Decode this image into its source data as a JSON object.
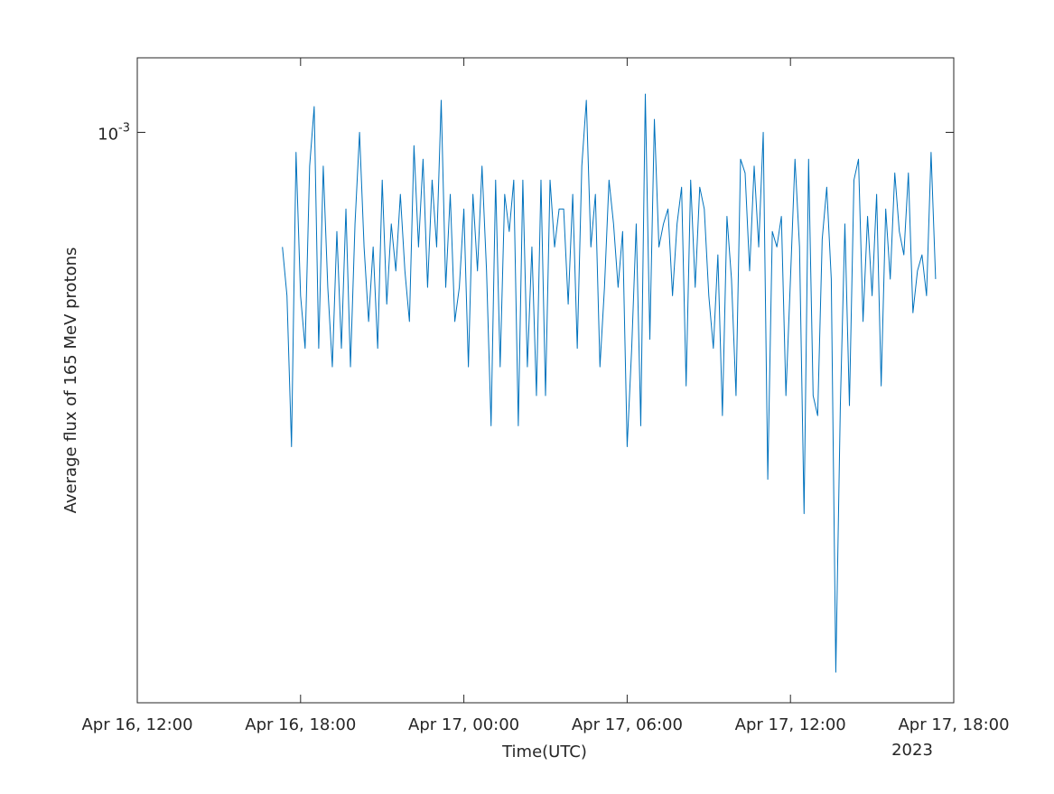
{
  "chart_data": {
    "type": "line",
    "xlabel": "Time(UTC)",
    "ylabel": "Average flux of 165 MeV protons",
    "x_secondary_label": "2023",
    "color": "#0072bd",
    "log_y": true,
    "xlim": [
      "2023-04-16T12:00",
      "2023-04-17T18:00"
    ],
    "xticks": [
      {
        "value": "2023-04-16T12:00",
        "label": "Apr 16, 12:00"
      },
      {
        "value": "2023-04-16T18:00",
        "label": "Apr 16, 18:00"
      },
      {
        "value": "2023-04-17T00:00",
        "label": "Apr 17, 00:00"
      },
      {
        "value": "2023-04-17T06:00",
        "label": "Apr 17, 06:00"
      },
      {
        "value": "2023-04-17T12:00",
        "label": "Apr 17, 12:00"
      },
      {
        "value": "2023-04-17T18:00",
        "label": "Apr 17, 18:00"
      }
    ],
    "ylim": [
      0.00042,
      0.00112
    ],
    "yticks": [
      {
        "value": 0.001,
        "label": "10",
        "exponent": "-3"
      }
    ],
    "x": [
      "2023-04-16T17:20",
      "2023-04-16T17:30",
      "2023-04-16T17:40",
      "2023-04-16T17:50",
      "2023-04-16T18:00",
      "2023-04-16T18:10",
      "2023-04-16T18:20",
      "2023-04-16T18:30",
      "2023-04-16T18:40",
      "2023-04-16T18:50",
      "2023-04-16T19:00",
      "2023-04-16T19:10",
      "2023-04-16T19:20",
      "2023-04-16T19:30",
      "2023-04-16T19:40",
      "2023-04-16T19:50",
      "2023-04-16T20:00",
      "2023-04-16T20:10",
      "2023-04-16T20:20",
      "2023-04-16T20:30",
      "2023-04-16T20:40",
      "2023-04-16T20:50",
      "2023-04-16T21:00",
      "2023-04-16T21:10",
      "2023-04-16T21:20",
      "2023-04-16T21:30",
      "2023-04-16T21:40",
      "2023-04-16T21:50",
      "2023-04-16T22:00",
      "2023-04-16T22:10",
      "2023-04-16T22:20",
      "2023-04-16T22:30",
      "2023-04-16T22:40",
      "2023-04-16T22:50",
      "2023-04-16T23:00",
      "2023-04-16T23:10",
      "2023-04-16T23:20",
      "2023-04-16T23:30",
      "2023-04-16T23:40",
      "2023-04-16T23:50",
      "2023-04-17T00:00",
      "2023-04-17T00:10",
      "2023-04-17T00:20",
      "2023-04-17T00:30",
      "2023-04-17T00:40",
      "2023-04-17T00:50",
      "2023-04-17T01:00",
      "2023-04-17T01:10",
      "2023-04-17T01:20",
      "2023-04-17T01:30",
      "2023-04-17T01:40",
      "2023-04-17T01:50",
      "2023-04-17T02:00",
      "2023-04-17T02:10",
      "2023-04-17T02:20",
      "2023-04-17T02:30",
      "2023-04-17T02:40",
      "2023-04-17T02:50",
      "2023-04-17T03:00",
      "2023-04-17T03:10",
      "2023-04-17T03:20",
      "2023-04-17T03:30",
      "2023-04-17T03:40",
      "2023-04-17T03:50",
      "2023-04-17T04:00",
      "2023-04-17T04:10",
      "2023-04-17T04:20",
      "2023-04-17T04:30",
      "2023-04-17T04:40",
      "2023-04-17T04:50",
      "2023-04-17T05:00",
      "2023-04-17T05:10",
      "2023-04-17T05:20",
      "2023-04-17T05:30",
      "2023-04-17T05:40",
      "2023-04-17T05:50",
      "2023-04-17T06:00",
      "2023-04-17T06:10",
      "2023-04-17T06:20",
      "2023-04-17T06:30",
      "2023-04-17T06:40",
      "2023-04-17T06:50",
      "2023-04-17T07:00",
      "2023-04-17T07:10",
      "2023-04-17T07:20",
      "2023-04-17T07:30",
      "2023-04-17T07:40",
      "2023-04-17T07:50",
      "2023-04-17T08:00",
      "2023-04-17T08:10",
      "2023-04-17T08:20",
      "2023-04-17T08:30",
      "2023-04-17T08:40",
      "2023-04-17T08:50",
      "2023-04-17T09:00",
      "2023-04-17T09:10",
      "2023-04-17T09:20",
      "2023-04-17T09:30",
      "2023-04-17T09:40",
      "2023-04-17T09:50",
      "2023-04-17T10:00",
      "2023-04-17T10:10",
      "2023-04-17T10:20",
      "2023-04-17T10:30",
      "2023-04-17T10:40",
      "2023-04-17T10:50",
      "2023-04-17T11:00",
      "2023-04-17T11:10",
      "2023-04-17T11:20",
      "2023-04-17T11:30",
      "2023-04-17T11:40",
      "2023-04-17T11:50",
      "2023-04-17T12:00",
      "2023-04-17T12:10",
      "2023-04-17T12:20",
      "2023-04-17T12:30",
      "2023-04-17T12:40",
      "2023-04-17T12:50",
      "2023-04-17T13:00",
      "2023-04-17T13:10",
      "2023-04-17T13:20",
      "2023-04-17T13:30",
      "2023-04-17T13:40",
      "2023-04-17T13:50",
      "2023-04-17T14:00",
      "2023-04-17T14:10",
      "2023-04-17T14:20",
      "2023-04-17T14:30",
      "2023-04-17T14:40",
      "2023-04-17T14:50",
      "2023-04-17T15:00",
      "2023-04-17T15:10",
      "2023-04-17T15:20",
      "2023-04-17T15:30",
      "2023-04-17T15:40",
      "2023-04-17T15:50",
      "2023-04-17T16:00",
      "2023-04-17T16:10",
      "2023-04-17T16:20",
      "2023-04-17T16:30",
      "2023-04-17T16:40",
      "2023-04-17T16:50",
      "2023-04-17T17:00",
      "2023-04-17T17:10",
      "2023-04-17T17:20"
    ],
    "values": [
      0.00084,
      0.00078,
      0.00062,
      0.00097,
      0.00078,
      0.00072,
      0.00095,
      0.00104,
      0.00072,
      0.00095,
      0.00079,
      0.0007,
      0.00086,
      0.00072,
      0.00089,
      0.0007,
      0.00087,
      0.001,
      0.00084,
      0.00075,
      0.00084,
      0.00072,
      0.00093,
      0.00077,
      0.00087,
      0.00081,
      0.00091,
      0.00081,
      0.00075,
      0.00098,
      0.00084,
      0.00096,
      0.00079,
      0.00093,
      0.00084,
      0.00105,
      0.00079,
      0.00091,
      0.00075,
      0.00079,
      0.00089,
      0.0007,
      0.00091,
      0.00081,
      0.00095,
      0.00081,
      0.00064,
      0.00093,
      0.0007,
      0.00091,
      0.00086,
      0.00093,
      0.00064,
      0.00093,
      0.0007,
      0.00084,
      0.00067,
      0.00093,
      0.00067,
      0.00093,
      0.00084,
      0.00089,
      0.00089,
      0.00077,
      0.00091,
      0.00072,
      0.00095,
      0.00105,
      0.00084,
      0.00091,
      0.0007,
      0.00079,
      0.00093,
      0.00087,
      0.00079,
      0.00086,
      0.00062,
      0.00072,
      0.00087,
      0.00064,
      0.00106,
      0.00073,
      0.00102,
      0.00084,
      0.00087,
      0.00089,
      0.00078,
      0.00087,
      0.00092,
      0.00068,
      0.00093,
      0.00079,
      0.00092,
      0.00089,
      0.00078,
      0.00072,
      0.00083,
      0.00065,
      0.00088,
      0.0008,
      0.00067,
      0.00096,
      0.00094,
      0.00081,
      0.00095,
      0.00084,
      0.001,
      0.00059,
      0.00086,
      0.00084,
      0.00088,
      0.00067,
      0.0008,
      0.00096,
      0.00084,
      0.00056,
      0.00096,
      0.00067,
      0.00065,
      0.00085,
      0.00092,
      0.0008,
      0.00044,
      0.00066,
      0.00087,
      0.00066,
      0.00093,
      0.00096,
      0.00075,
      0.00088,
      0.00078,
      0.00091,
      0.00068,
      0.00089,
      0.0008,
      0.00094,
      0.00086,
      0.00083,
      0.00094,
      0.00076,
      0.00081,
      0.00083,
      0.00078,
      0.00097,
      0.0008
    ]
  }
}
